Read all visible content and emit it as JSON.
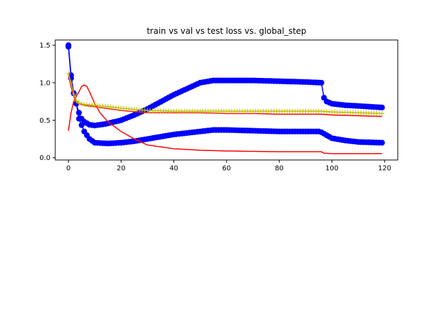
{
  "chart_data": {
    "type": "line",
    "title": "train vs val vs test loss vs. global_step",
    "xlabel": "",
    "ylabel": "",
    "xlim": [
      -5,
      125
    ],
    "ylim": [
      -0.03,
      1.57
    ],
    "xticks": [
      0,
      20,
      40,
      60,
      80,
      100,
      120
    ],
    "yticks": [
      0.0,
      0.5,
      1.0,
      1.5
    ],
    "xtick_labels": [
      "0",
      "20",
      "40",
      "60",
      "80",
      "100",
      "120"
    ],
    "ytick_labels": [
      "0.0",
      "0.5",
      "1.0",
      "1.5"
    ],
    "grid": false,
    "legend": "none",
    "colors": {
      "blue": "#0000ff",
      "red": "#ff0000",
      "yellow": "#bfbf00"
    },
    "series_knots": [
      {
        "color": "blue",
        "marker": "circle",
        "knots": [
          [
            0,
            1.48
          ],
          [
            1,
            1.06
          ],
          [
            2,
            0.86
          ],
          [
            3,
            0.72
          ],
          [
            4,
            0.6
          ],
          [
            5,
            0.52
          ],
          [
            6,
            0.48
          ],
          [
            8,
            0.44
          ],
          [
            10,
            0.43
          ],
          [
            14,
            0.45
          ],
          [
            20,
            0.5
          ],
          [
            25,
            0.57
          ],
          [
            30,
            0.65
          ],
          [
            40,
            0.84
          ],
          [
            50,
            1.0
          ],
          [
            55,
            1.03
          ],
          [
            60,
            1.03
          ],
          [
            70,
            1.03
          ],
          [
            80,
            1.02
          ],
          [
            90,
            1.01
          ],
          [
            96,
            1.0
          ],
          [
            97,
            0.8
          ],
          [
            98,
            0.75
          ],
          [
            100,
            0.72
          ],
          [
            105,
            0.7
          ],
          [
            110,
            0.69
          ],
          [
            119,
            0.67
          ]
        ]
      },
      {
        "color": "blue",
        "marker": "circle",
        "knots": [
          [
            0,
            1.5
          ],
          [
            1,
            1.1
          ],
          [
            2,
            0.86
          ],
          [
            3,
            0.72
          ],
          [
            4,
            0.52
          ],
          [
            6,
            0.35
          ],
          [
            8,
            0.25
          ],
          [
            10,
            0.2
          ],
          [
            15,
            0.19
          ],
          [
            20,
            0.2
          ],
          [
            25,
            0.22
          ],
          [
            30,
            0.25
          ],
          [
            40,
            0.31
          ],
          [
            50,
            0.35
          ],
          [
            55,
            0.37
          ],
          [
            60,
            0.37
          ],
          [
            70,
            0.36
          ],
          [
            80,
            0.35
          ],
          [
            90,
            0.35
          ],
          [
            95,
            0.35
          ],
          [
            96,
            0.34
          ],
          [
            98,
            0.3
          ],
          [
            100,
            0.26
          ],
          [
            105,
            0.23
          ],
          [
            110,
            0.21
          ],
          [
            119,
            0.2
          ]
        ]
      },
      {
        "color": "red",
        "marker": "none",
        "knots": [
          [
            0,
            0.36
          ],
          [
            1,
            0.6
          ],
          [
            2,
            0.75
          ],
          [
            3,
            0.82
          ],
          [
            4,
            0.88
          ],
          [
            5,
            0.95
          ],
          [
            6,
            0.97
          ],
          [
            7,
            0.95
          ],
          [
            8,
            0.88
          ],
          [
            10,
            0.72
          ],
          [
            12,
            0.6
          ],
          [
            15,
            0.48
          ],
          [
            20,
            0.35
          ],
          [
            25,
            0.25
          ],
          [
            30,
            0.17
          ],
          [
            40,
            0.12
          ],
          [
            50,
            0.1
          ],
          [
            60,
            0.09
          ],
          [
            70,
            0.085
          ],
          [
            80,
            0.08
          ],
          [
            90,
            0.08
          ],
          [
            96,
            0.08
          ],
          [
            97,
            0.06
          ],
          [
            100,
            0.055
          ],
          [
            110,
            0.055
          ],
          [
            119,
            0.055
          ]
        ]
      },
      {
        "color": "red",
        "marker": "none",
        "knots": [
          [
            0,
            1.1
          ],
          [
            1,
            0.95
          ],
          [
            2,
            0.82
          ],
          [
            3,
            0.75
          ],
          [
            4,
            0.72
          ],
          [
            6,
            0.7
          ],
          [
            10,
            0.68
          ],
          [
            20,
            0.63
          ],
          [
            30,
            0.6
          ],
          [
            40,
            0.6
          ],
          [
            50,
            0.6
          ],
          [
            60,
            0.59
          ],
          [
            70,
            0.59
          ],
          [
            80,
            0.58
          ],
          [
            90,
            0.58
          ],
          [
            96,
            0.58
          ],
          [
            100,
            0.57
          ],
          [
            110,
            0.56
          ],
          [
            119,
            0.55
          ]
        ]
      },
      {
        "color": "yellow",
        "marker": "plus",
        "knots": [
          [
            0,
            1.12
          ],
          [
            1,
            1.0
          ],
          [
            2,
            0.85
          ],
          [
            3,
            0.76
          ],
          [
            4,
            0.73
          ],
          [
            6,
            0.71
          ],
          [
            10,
            0.7
          ],
          [
            20,
            0.66
          ],
          [
            30,
            0.63
          ],
          [
            40,
            0.62
          ],
          [
            50,
            0.62
          ],
          [
            60,
            0.62
          ],
          [
            70,
            0.62
          ],
          [
            80,
            0.62
          ],
          [
            90,
            0.62
          ],
          [
            96,
            0.62
          ],
          [
            100,
            0.61
          ],
          [
            110,
            0.6
          ],
          [
            119,
            0.59
          ]
        ]
      }
    ]
  }
}
